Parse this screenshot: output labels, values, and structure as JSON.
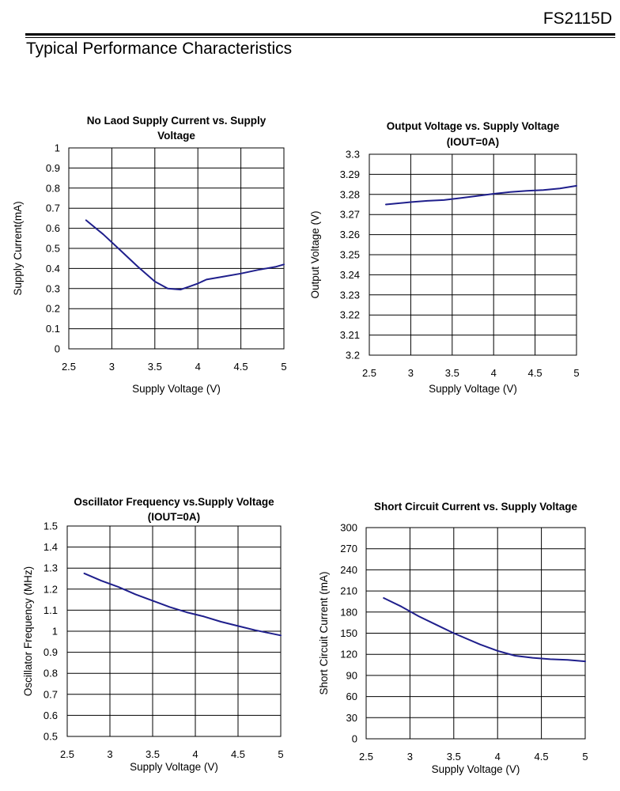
{
  "header": {
    "part_number": "FS2115D",
    "section_title": "Typical Performance Characteristics"
  },
  "style": {
    "line_color": "#1f1f8c",
    "grid_color": "#000000"
  },
  "chart_data": [
    {
      "type": "line",
      "title_lines": [
        "No Laod Supply Current vs. Supply",
        "Voltage"
      ],
      "xlabel": "Supply Voltage (V)",
      "ylabel": "Supply Current(mA)",
      "xlim": [
        2.5,
        5
      ],
      "ylim": [
        0,
        1
      ],
      "x_ticks": [
        "2.5",
        "3",
        "3.5",
        "4",
        "4.5",
        "5"
      ],
      "y_ticks": [
        "0",
        "0.1",
        "0.2",
        "0.3",
        "0.4",
        "0.5",
        "0.6",
        "0.7",
        "0.8",
        "0.9",
        "1"
      ],
      "grid": true,
      "x": [
        2.7,
        2.9,
        3.1,
        3.3,
        3.5,
        3.65,
        3.8,
        3.9,
        4.0,
        4.1,
        4.3,
        4.5,
        4.7,
        4.9,
        5.0
      ],
      "y": [
        0.64,
        0.57,
        0.49,
        0.41,
        0.335,
        0.3,
        0.295,
        0.31,
        0.325,
        0.345,
        0.36,
        0.375,
        0.393,
        0.408,
        0.42
      ]
    },
    {
      "type": "line",
      "title_lines": [
        "Output Voltage vs. Supply Voltage",
        "(IOUT=0A)"
      ],
      "xlabel": "Supply Voltage (V)",
      "ylabel": "Output Voltage (V)",
      "xlim": [
        2.5,
        5
      ],
      "ylim": [
        3.2,
        3.3
      ],
      "x_ticks": [
        "2.5",
        "3",
        "3.5",
        "4",
        "4.5",
        "5"
      ],
      "y_ticks": [
        "3.2",
        "3.21",
        "3.22",
        "3.23",
        "3.24",
        "3.25",
        "3.26",
        "3.27",
        "3.28",
        "3.29",
        "3.3"
      ],
      "grid": true,
      "x": [
        2.7,
        3.0,
        3.2,
        3.4,
        3.6,
        3.8,
        4.0,
        4.2,
        4.4,
        4.6,
        4.8,
        5.0
      ],
      "y": [
        3.275,
        3.2762,
        3.2768,
        3.2772,
        3.2782,
        3.2792,
        3.2803,
        3.2812,
        3.2818,
        3.2822,
        3.283,
        3.2843
      ]
    },
    {
      "type": "line",
      "title_lines": [
        "Oscillator Frequency vs.Supply Voltage",
        "(IOUT=0A)"
      ],
      "xlabel": "Supply Voltage (V)",
      "ylabel": "Oscillator Frequency (MHz)",
      "xlim": [
        2.5,
        5
      ],
      "ylim": [
        0.5,
        1.5
      ],
      "x_ticks": [
        "2.5",
        "3",
        "3.5",
        "4",
        "4.5",
        "5"
      ],
      "y_ticks": [
        "0.5",
        "0.6",
        "0.7",
        "0.8",
        "0.9",
        "1",
        "1.1",
        "1.2",
        "1.3",
        "1.4",
        "1.5"
      ],
      "grid": true,
      "x": [
        2.7,
        2.9,
        3.1,
        3.3,
        3.5,
        3.7,
        3.9,
        4.1,
        4.3,
        4.5,
        4.7,
        5.0
      ],
      "y": [
        1.275,
        1.24,
        1.21,
        1.175,
        1.145,
        1.115,
        1.09,
        1.07,
        1.045,
        1.025,
        1.005,
        0.98
      ]
    },
    {
      "type": "line",
      "title_lines": [
        "Short Circuit Current vs. Supply Voltage"
      ],
      "xlabel": "Supply Voltage (V)",
      "ylabel": "Short Circuit Current (mA)",
      "xlim": [
        2.5,
        5
      ],
      "ylim": [
        0,
        300
      ],
      "x_ticks": [
        "2.5",
        "3",
        "3.5",
        "4",
        "4.5",
        "5"
      ],
      "y_ticks": [
        "0",
        "30",
        "60",
        "90",
        "120",
        "150",
        "180",
        "210",
        "240",
        "270",
        "300"
      ],
      "grid": true,
      "x": [
        2.7,
        2.9,
        3.1,
        3.3,
        3.5,
        3.8,
        4.0,
        4.2,
        4.4,
        4.6,
        4.8,
        5.0
      ],
      "y": [
        200,
        188,
        174,
        162,
        150,
        134,
        125,
        118,
        115,
        113,
        112,
        110
      ]
    }
  ]
}
